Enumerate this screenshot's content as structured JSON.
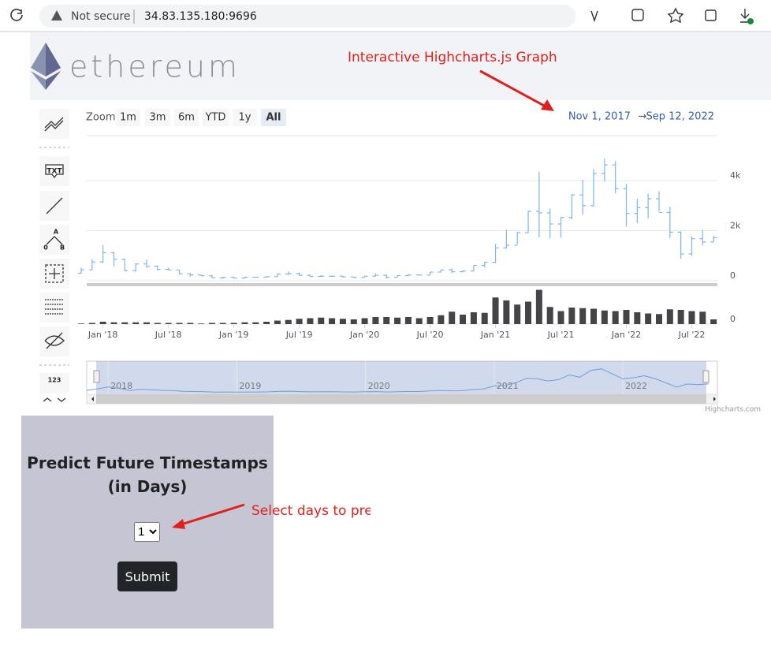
{
  "browser": {
    "security": "Not secure",
    "url": "34.83.135.180:9696"
  },
  "header": {
    "logo": "ethereum",
    "annotation": "Interactive Highcharts.js Graph"
  },
  "toolbar": {
    "labels": [
      "TXT",
      "A",
      "0",
      "B",
      "123"
    ]
  },
  "chart_data": {
    "type": "ohlc",
    "zoom_label": "Zoom",
    "range_buttons": [
      "1m",
      "3m",
      "6m",
      "YTD",
      "1y",
      "All"
    ],
    "range_selected": 5,
    "date_range": {
      "from": "Nov 1, 2017",
      "separator": "→",
      "to": "Sep 12, 2022"
    },
    "x": [
      "2017-11",
      "2017-12",
      "2018-01",
      "2018-02",
      "2018-03",
      "2018-04",
      "2018-05",
      "2018-06",
      "2018-07",
      "2018-08",
      "2018-09",
      "2018-10",
      "2018-11",
      "2018-12",
      "2019-01",
      "2019-02",
      "2019-03",
      "2019-04",
      "2019-05",
      "2019-06",
      "2019-07",
      "2019-08",
      "2019-09",
      "2019-10",
      "2019-11",
      "2019-12",
      "2020-01",
      "2020-02",
      "2020-03",
      "2020-04",
      "2020-05",
      "2020-06",
      "2020-07",
      "2020-08",
      "2020-09",
      "2020-10",
      "2020-11",
      "2020-12",
      "2021-01",
      "2021-02",
      "2021-03",
      "2021-04",
      "2021-05",
      "2021-06",
      "2021-07",
      "2021-08",
      "2021-09",
      "2021-10",
      "2021-11",
      "2021-12",
      "2022-01",
      "2022-02",
      "2022-03",
      "2022-04",
      "2022-05",
      "2022-06",
      "2022-07",
      "2022-08",
      "2022-09"
    ],
    "ohlc": {
      "color": "#7cb5ec",
      "open": [
        300,
        440,
        750,
        1120,
        860,
        400,
        670,
        580,
        455,
        430,
        280,
        230,
        200,
        115,
        133,
        107,
        136,
        141,
        162,
        268,
        290,
        218,
        172,
        180,
        182,
        152,
        130,
        180,
        218,
        133,
        206,
        231,
        226,
        345,
        434,
        360,
        386,
        615,
        737,
        1315,
        1420,
        1920,
        2775,
        2710,
        2270,
        2530,
        3430,
        3000,
        4290,
        4630,
        3680,
        2690,
        2920,
        3280,
        2730,
        1940,
        1070,
        1680,
        1550
      ],
      "high": [
        520,
        860,
        1420,
        1160,
        880,
        700,
        840,
        620,
        510,
        440,
        300,
        240,
        220,
        160,
        160,
        165,
        145,
        185,
        285,
        365,
        320,
        240,
        225,
        200,
        195,
        155,
        185,
        290,
        250,
        227,
        250,
        250,
        350,
        445,
        490,
        420,
        620,
        760,
        1470,
        2040,
        1950,
        2790,
        4360,
        2890,
        2550,
        3460,
        4030,
        4460,
        4870,
        4780,
        3870,
        3280,
        3480,
        3580,
        2950,
        1970,
        1780,
        2030,
        1790
      ],
      "low": [
        290,
        420,
        720,
        570,
        370,
        360,
        520,
        410,
        430,
        250,
        170,
        190,
        100,
        80,
        100,
        100,
        125,
        140,
        155,
        230,
        190,
        165,
        155,
        155,
        135,
        115,
        125,
        180,
        90,
        130,
        180,
        215,
        225,
        340,
        310,
        335,
        375,
        540,
        715,
        1290,
        1450,
        1910,
        1730,
        1700,
        1720,
        2460,
        2650,
        2970,
        3970,
        3500,
        2160,
        2300,
        2500,
        2780,
        1710,
        880,
        1000,
        1420,
        1550
      ],
      "close": [
        440,
        750,
        1120,
        860,
        400,
        670,
        580,
        455,
        430,
        280,
        230,
        200,
        115,
        133,
        107,
        136,
        141,
        162,
        268,
        290,
        218,
        172,
        180,
        182,
        152,
        130,
        180,
        218,
        133,
        206,
        231,
        226,
        345,
        434,
        360,
        386,
        615,
        737,
        1315,
        1420,
        1920,
        2775,
        2710,
        2270,
        2530,
        3430,
        3000,
        4290,
        4630,
        3680,
        2690,
        2920,
        3280,
        2730,
        1940,
        1070,
        1680,
        1550,
        1720
      ]
    },
    "volume": {
      "color": "#434348",
      "values": [
        1,
        2,
        4,
        3,
        3,
        3,
        3,
        2,
        2,
        2,
        2,
        1,
        2,
        2,
        2,
        3,
        3,
        4,
        6,
        7,
        9,
        10,
        11,
        10,
        9,
        8,
        10,
        12,
        12,
        11,
        12,
        10,
        12,
        15,
        21,
        16,
        20,
        19,
        45,
        40,
        33,
        38,
        58,
        29,
        22,
        28,
        27,
        26,
        23,
        22,
        24,
        20,
        18,
        17,
        25,
        24,
        22,
        21,
        8
      ],
      "ylim": [
        0,
        60
      ],
      "yticks": [
        0
      ]
    },
    "ylim": [
      0,
      5800
    ],
    "yticks": [
      0,
      {
        "value": 2000,
        "label": "2k"
      },
      {
        "value": 4000,
        "label": "4k"
      }
    ],
    "grid": true,
    "xticks": [
      {
        "value": "2018-01",
        "label": "Jan '18"
      },
      {
        "value": "2018-07",
        "label": "Jul '18"
      },
      {
        "value": "2019-01",
        "label": "Jan '19"
      },
      {
        "value": "2019-07",
        "label": "Jul '19"
      },
      {
        "value": "2020-01",
        "label": "Jan '20"
      },
      {
        "value": "2020-07",
        "label": "Jul '20"
      },
      {
        "value": "2021-01",
        "label": "Jan '21"
      },
      {
        "value": "2021-07",
        "label": "Jul '21"
      },
      {
        "value": "2022-01",
        "label": "Jan '22"
      },
      {
        "value": "2022-07",
        "label": "Jul '22"
      }
    ],
    "navigator": {
      "color": "#6f9ed8",
      "ticks": [
        {
          "value": "2018-01",
          "label": "2018"
        },
        {
          "value": "2019-01",
          "label": "2019"
        },
        {
          "value": "2020-01",
          "label": "2020"
        },
        {
          "value": "2021-01",
          "label": "2021"
        },
        {
          "value": "2022-01",
          "label": "2022"
        }
      ]
    },
    "credit": "Highcharts.com"
  },
  "form": {
    "title_line1": "Predict Future Timestamps",
    "title_line2": "(in Days)",
    "select_value": "1",
    "button": "Submit",
    "annotation": "Select days to predict"
  }
}
